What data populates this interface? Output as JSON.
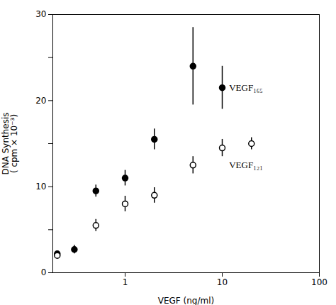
{
  "chart_data": {
    "type": "scatter",
    "xlabel": "VEGF (ng/ml)",
    "ylabel": "DNA Synthesis\n( cpm × 10⁻³)",
    "log": "x",
    "xlim": [
      0.18,
      100
    ],
    "ylim": [
      0,
      30
    ],
    "xticks": [
      1,
      10,
      100
    ],
    "yticks": [
      0,
      {
        "value": 5,
        "label": ""
      },
      10,
      {
        "value": 15,
        "label": ""
      },
      20,
      {
        "value": 25,
        "label": ""
      },
      30
    ],
    "series": [
      {
        "x": [
          0.2,
          0.3,
          0.5,
          1.0,
          2.0,
          5.0,
          10.0
        ],
        "values": [
          2.2,
          2.7,
          9.5,
          11.0,
          15.5,
          24.0,
          21.5
        ],
        "errors": [
          0.3,
          0.5,
          0.7,
          0.9,
          1.2,
          4.5,
          2.5
        ],
        "color": "#000000",
        "marker": "circle"
      },
      {
        "x": [
          0.2,
          0.5,
          1.0,
          2.0,
          5.0,
          10.0,
          20.0
        ],
        "values": [
          2.0,
          5.5,
          8.0,
          9.0,
          12.5,
          14.5,
          15.0
        ],
        "errors": [
          0.3,
          0.7,
          0.9,
          0.9,
          1.0,
          1.0,
          0.7
        ],
        "color": "#000000",
        "marker": "open circle"
      }
    ],
    "annotations": [
      {
        "text": "VEGF₁₆₅",
        "x": 11,
        "y": 21.5
      },
      {
        "text": "VEGF₁₂₁",
        "x": 11,
        "y": 12.5
      }
    ]
  }
}
